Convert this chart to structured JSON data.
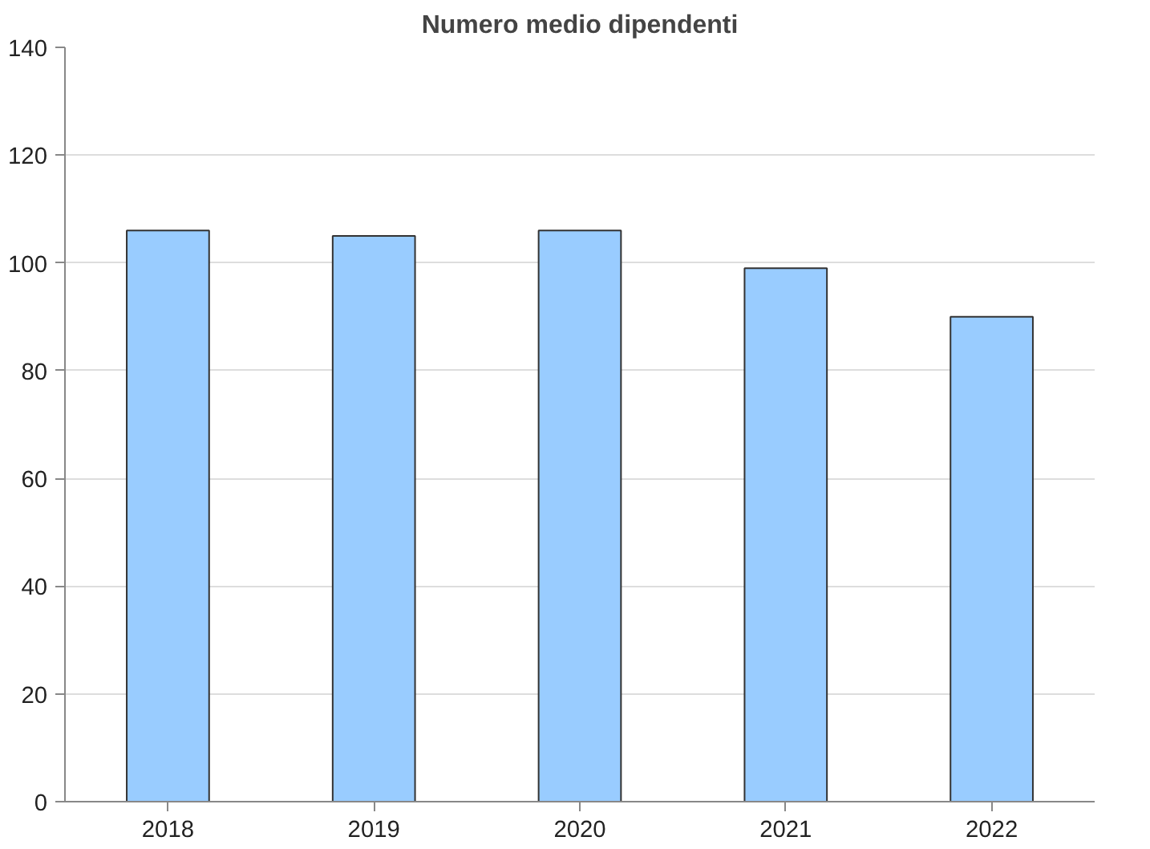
{
  "chart_data": {
    "type": "bar",
    "title": "Numero medio dipendenti",
    "categories": [
      "2018",
      "2019",
      "2020",
      "2021",
      "2022"
    ],
    "values": [
      106,
      105,
      106,
      99,
      90
    ],
    "color": "#99ccff",
    "ylim": [
      0,
      140
    ],
    "yticks": [
      0,
      20,
      40,
      60,
      80,
      100,
      120,
      140
    ],
    "grid": "y"
  }
}
